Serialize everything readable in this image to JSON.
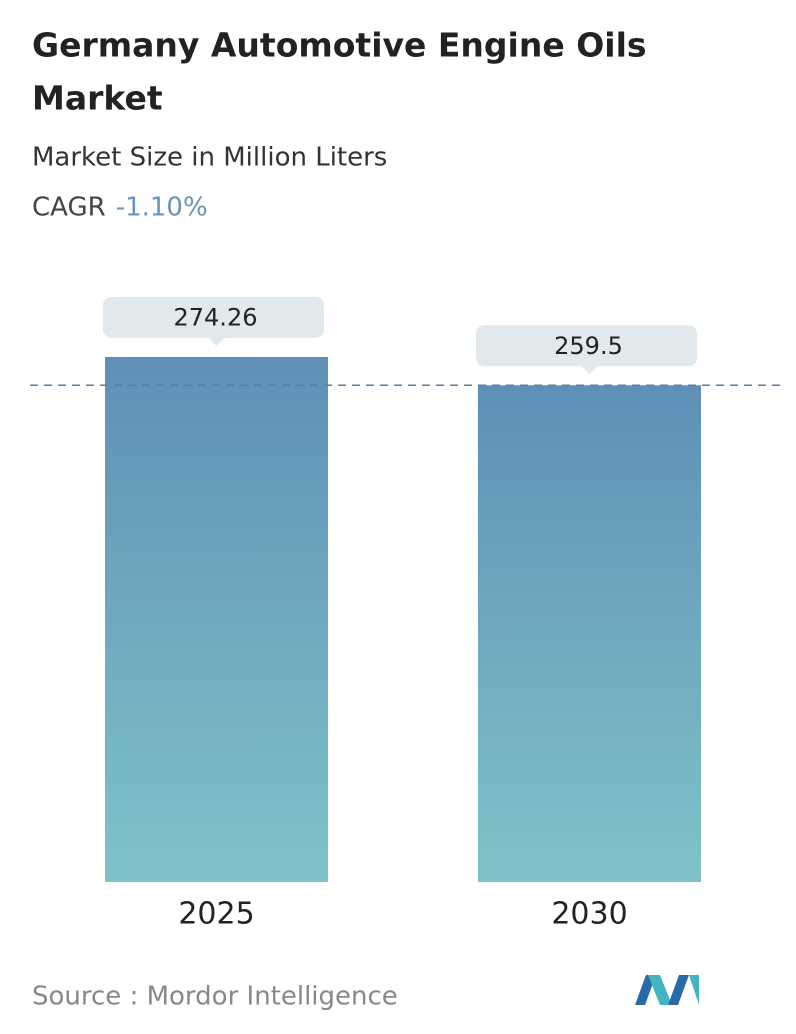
{
  "chart_data": {
    "type": "bar",
    "title_lines": [
      "Germany Automotive Engine Oils",
      "Market"
    ],
    "subtitle": "Market Size in Million Liters",
    "cagr_label": "CAGR",
    "cagr_value": "-1.10%",
    "categories": [
      "2025",
      "2030"
    ],
    "values": [
      274.26,
      259.5
    ],
    "color_top": "#5f8fb6",
    "color_bottom": "#7fc3c8",
    "reference_line": true,
    "source": "Source :  Mordor Intelligence"
  }
}
